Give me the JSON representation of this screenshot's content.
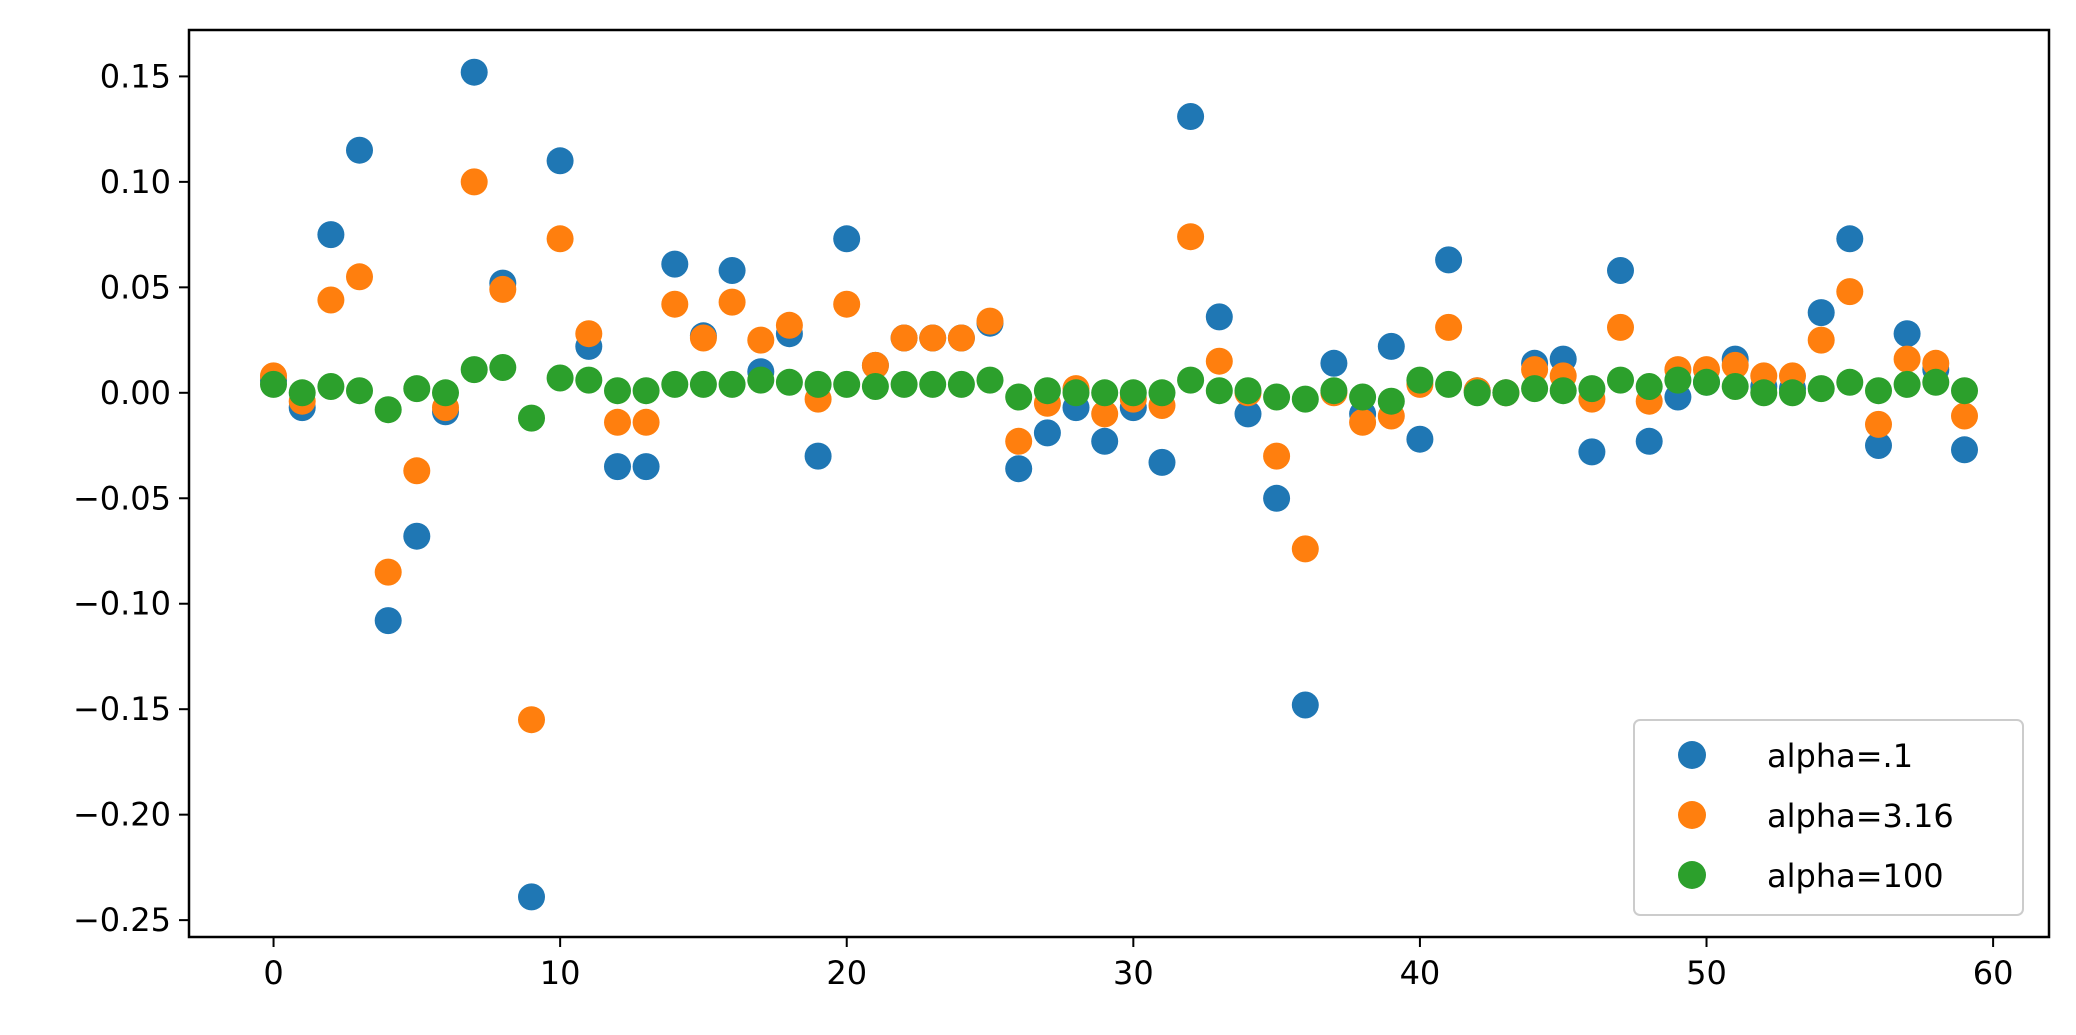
{
  "chart_data": {
    "type": "scatter",
    "title": "",
    "xlabel": "",
    "ylabel": "",
    "xlim": [
      -2.95,
      61.95
    ],
    "ylim": [
      -0.258,
      0.172
    ],
    "xticks": [
      0,
      10,
      20,
      30,
      40,
      50,
      60
    ],
    "xtick_labels": [
      "0",
      "10",
      "20",
      "30",
      "40",
      "50",
      "60"
    ],
    "yticks": [
      -0.25,
      -0.2,
      -0.15,
      -0.1,
      -0.05,
      0.0,
      0.05,
      0.1,
      0.15
    ],
    "ytick_labels": [
      "−0.25",
      "−0.20",
      "−0.15",
      "−0.10",
      "−0.05",
      "0.00",
      "0.05",
      "0.10",
      "0.15"
    ],
    "grid": false,
    "legend_position": "lower-right",
    "x": [
      0,
      1,
      2,
      3,
      4,
      5,
      6,
      7,
      8,
      9,
      10,
      11,
      12,
      13,
      14,
      15,
      16,
      17,
      18,
      19,
      20,
      21,
      22,
      23,
      24,
      25,
      26,
      27,
      28,
      29,
      30,
      31,
      32,
      33,
      34,
      35,
      36,
      37,
      38,
      39,
      40,
      41,
      42,
      43,
      44,
      45,
      46,
      47,
      48,
      49,
      50,
      51,
      52,
      53,
      54,
      55,
      56,
      57,
      58,
      59
    ],
    "series": [
      {
        "name": "alpha=.1",
        "color": "#1f77b4",
        "values": [
          0.006,
          -0.007,
          0.075,
          0.115,
          -0.108,
          -0.068,
          -0.009,
          0.152,
          0.052,
          -0.239,
          0.11,
          0.022,
          -0.035,
          -0.035,
          0.061,
          0.027,
          0.058,
          0.01,
          0.028,
          -0.03,
          0.073,
          0.013,
          0.026,
          0.026,
          0.026,
          0.033,
          -0.036,
          -0.019,
          -0.007,
          -0.023,
          -0.007,
          -0.033,
          0.131,
          0.036,
          -0.01,
          -0.05,
          -0.148,
          0.014,
          -0.01,
          0.022,
          -0.022,
          0.063,
          0.001,
          0.0,
          0.014,
          0.016,
          -0.028,
          0.058,
          -0.023,
          -0.002,
          0.005,
          0.016,
          0.003,
          0.002,
          0.038,
          0.073,
          -0.025,
          0.028,
          0.011,
          -0.027
        ]
      },
      {
        "name": "alpha=3.16",
        "color": "#ff7f0e",
        "values": [
          0.008,
          -0.004,
          0.044,
          0.055,
          -0.085,
          -0.037,
          -0.007,
          0.1,
          0.049,
          -0.155,
          0.073,
          0.028,
          -0.014,
          -0.014,
          0.042,
          0.026,
          0.043,
          0.025,
          0.032,
          -0.003,
          0.042,
          0.013,
          0.026,
          0.026,
          0.026,
          0.034,
          -0.023,
          -0.005,
          0.002,
          -0.01,
          -0.003,
          -0.006,
          0.074,
          0.015,
          0.0,
          -0.03,
          -0.074,
          0.0,
          -0.014,
          -0.011,
          0.004,
          0.031,
          0.001,
          0.0,
          0.011,
          0.008,
          -0.003,
          0.031,
          -0.004,
          0.011,
          0.011,
          0.013,
          0.008,
          0.008,
          0.025,
          0.048,
          -0.015,
          0.016,
          0.014,
          -0.011
        ]
      },
      {
        "name": "alpha=100",
        "color": "#2ca02c",
        "values": [
          0.004,
          0.0,
          0.003,
          0.001,
          -0.008,
          0.002,
          0.0,
          0.011,
          0.012,
          -0.012,
          0.007,
          0.006,
          0.001,
          0.001,
          0.004,
          0.004,
          0.004,
          0.006,
          0.005,
          0.004,
          0.004,
          0.003,
          0.004,
          0.004,
          0.004,
          0.006,
          -0.002,
          0.001,
          0.0,
          0.0,
          0.0,
          0.0,
          0.006,
          0.001,
          0.001,
          -0.002,
          -0.003,
          0.001,
          -0.002,
          -0.004,
          0.006,
          0.004,
          0.0,
          0.0,
          0.002,
          0.001,
          0.002,
          0.006,
          0.003,
          0.006,
          0.005,
          0.003,
          0.0,
          0.0,
          0.002,
          0.005,
          0.001,
          0.004,
          0.005,
          0.001
        ]
      }
    ]
  }
}
